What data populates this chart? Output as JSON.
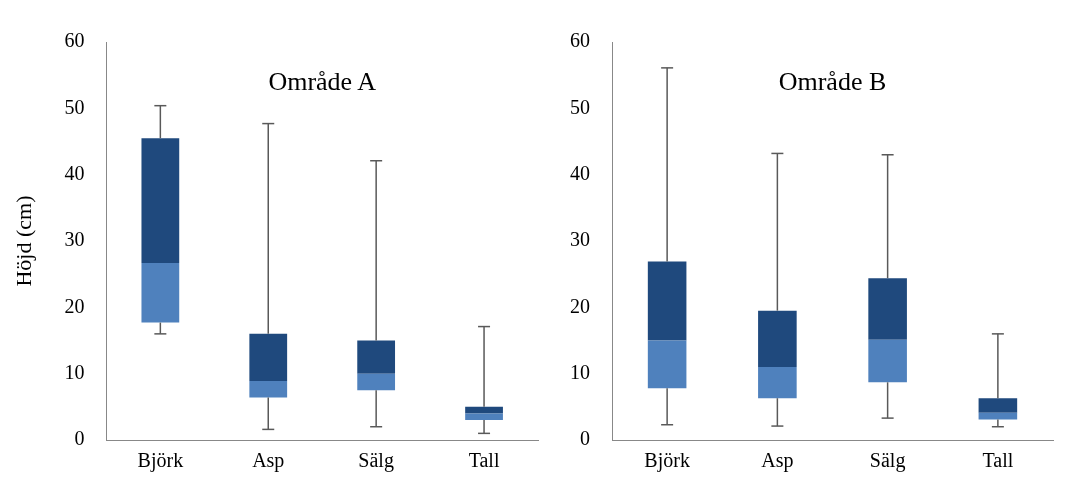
{
  "chart_data": [
    {
      "type": "box",
      "title": "Område A",
      "ylabel": "Höjd (cm)",
      "categories": [
        "Björk",
        "Asp",
        "Sälg",
        "Tall"
      ],
      "color": "#1f497d",
      "colors": [
        "#4f81bd",
        "#4f81bd",
        "#4f81bd",
        "#4f81bd"
      ],
      "ylim": [
        0,
        60
      ],
      "yticks": [
        0,
        10,
        20,
        30,
        40,
        50,
        60
      ],
      "grid": false,
      "legend": false,
      "boxes": [
        {
          "low": 16,
          "q1": 17.7,
          "median": 26.7,
          "q3": 45.5,
          "high": 50.4
        },
        {
          "low": 1.6,
          "q1": 6.4,
          "median": 8.9,
          "q3": 16,
          "high": 47.7
        },
        {
          "low": 2,
          "q1": 7.5,
          "median": 10,
          "q3": 15,
          "high": 42.1
        },
        {
          "low": 1,
          "q1": 3,
          "median": 4,
          "q3": 5,
          "high": 17.1
        }
      ]
    },
    {
      "type": "box",
      "title": "Område B",
      "categories": [
        "Björk",
        "Asp",
        "Sälg",
        "Tall"
      ],
      "color": "#1f497d",
      "colors": [
        "#4f81bd",
        "#4f81bd",
        "#4f81bd",
        "#4f81bd"
      ],
      "ylim": [
        0,
        60
      ],
      "yticks": [
        0,
        10,
        20,
        30,
        40,
        50,
        60
      ],
      "grid": false,
      "legend": false,
      "boxes": [
        {
          "low": 2.3,
          "q1": 7.8,
          "median": 15,
          "q3": 26.9,
          "high": 56.1
        },
        {
          "low": 2.1,
          "q1": 6.3,
          "median": 11,
          "q3": 19.5,
          "high": 43.2
        },
        {
          "low": 3.3,
          "q1": 8.7,
          "median": 15.1,
          "q3": 24.4,
          "high": 43
        },
        {
          "low": 2,
          "q1": 3.1,
          "median": 4.1,
          "q3": 6.3,
          "high": 16
        }
      ]
    }
  ]
}
